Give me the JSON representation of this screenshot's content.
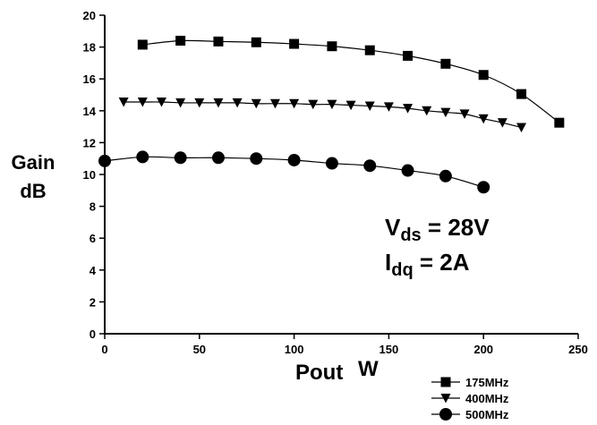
{
  "chart_data": {
    "type": "line",
    "title": "",
    "ylabel": [
      "Gain",
      "dB"
    ],
    "xlabel": {
      "main": "Pout",
      "unit": "W"
    },
    "xlim": [
      0,
      250
    ],
    "ylim": [
      0,
      20
    ],
    "xticks": [
      0,
      50,
      100,
      150,
      200,
      250
    ],
    "yticks": [
      0,
      2,
      4,
      6,
      8,
      10,
      12,
      14,
      16,
      18,
      20
    ],
    "grid": false,
    "legend_position": "bottom-right",
    "annotations": [
      {
        "main": "V",
        "sub": "ds",
        "rest": " = 28V"
      },
      {
        "main": "I",
        "sub": "dq",
        "rest": " = 2A"
      }
    ],
    "series": [
      {
        "name": "175MHz",
        "marker": "square",
        "x": [
          20,
          40,
          60,
          80,
          100,
          120,
          140,
          160,
          180,
          200,
          220,
          240
        ],
        "y": [
          18.15,
          18.4,
          18.35,
          18.3,
          18.2,
          18.05,
          17.8,
          17.45,
          16.95,
          16.25,
          15.05,
          13.25
        ]
      },
      {
        "name": "400MHz",
        "marker": "triangle-down",
        "x": [
          10,
          20,
          30,
          40,
          50,
          60,
          70,
          80,
          90,
          100,
          110,
          120,
          130,
          140,
          150,
          160,
          170,
          180,
          190,
          200,
          210,
          220
        ],
        "y": [
          14.55,
          14.55,
          14.55,
          14.5,
          14.5,
          14.5,
          14.5,
          14.45,
          14.45,
          14.45,
          14.4,
          14.4,
          14.35,
          14.3,
          14.25,
          14.15,
          14.0,
          13.9,
          13.8,
          13.5,
          13.25,
          12.95
        ]
      },
      {
        "name": "500MHz",
        "marker": "circle",
        "x": [
          0,
          20,
          40,
          60,
          80,
          100,
          120,
          140,
          160,
          180,
          200
        ],
        "y": [
          10.85,
          11.1,
          11.05,
          11.05,
          11.0,
          10.9,
          10.7,
          10.55,
          10.25,
          9.9,
          9.2
        ]
      }
    ]
  }
}
